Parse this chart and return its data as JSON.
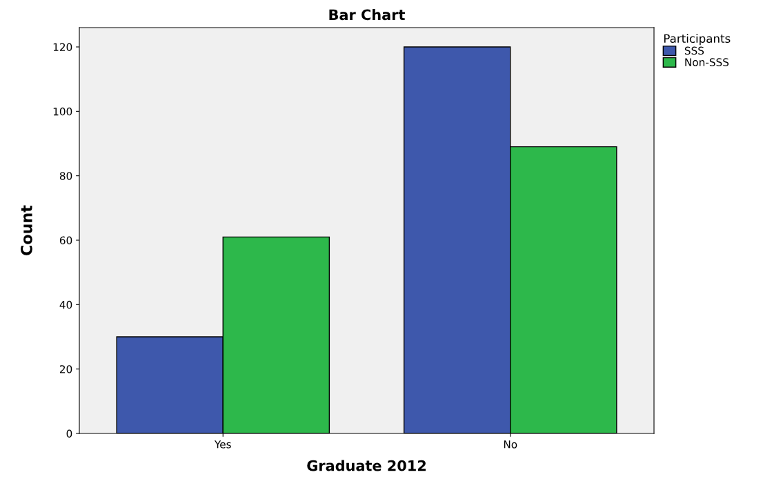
{
  "chart_data": {
    "type": "bar",
    "title": "Bar Chart",
    "xlabel": "Graduate 2012",
    "ylabel": "Count",
    "legend_title": "Participants",
    "categories": [
      "Yes",
      "No"
    ],
    "series": [
      {
        "name": "SSS",
        "color": "#3e58ac",
        "values": [
          30,
          120
        ]
      },
      {
        "name": "Non-SSS",
        "color": "#2db84b",
        "values": [
          61,
          89
        ]
      }
    ],
    "ylim": [
      0,
      126
    ],
    "yticks": [
      0,
      20,
      40,
      60,
      80,
      100,
      120
    ],
    "grid": false,
    "legend": "top right"
  }
}
